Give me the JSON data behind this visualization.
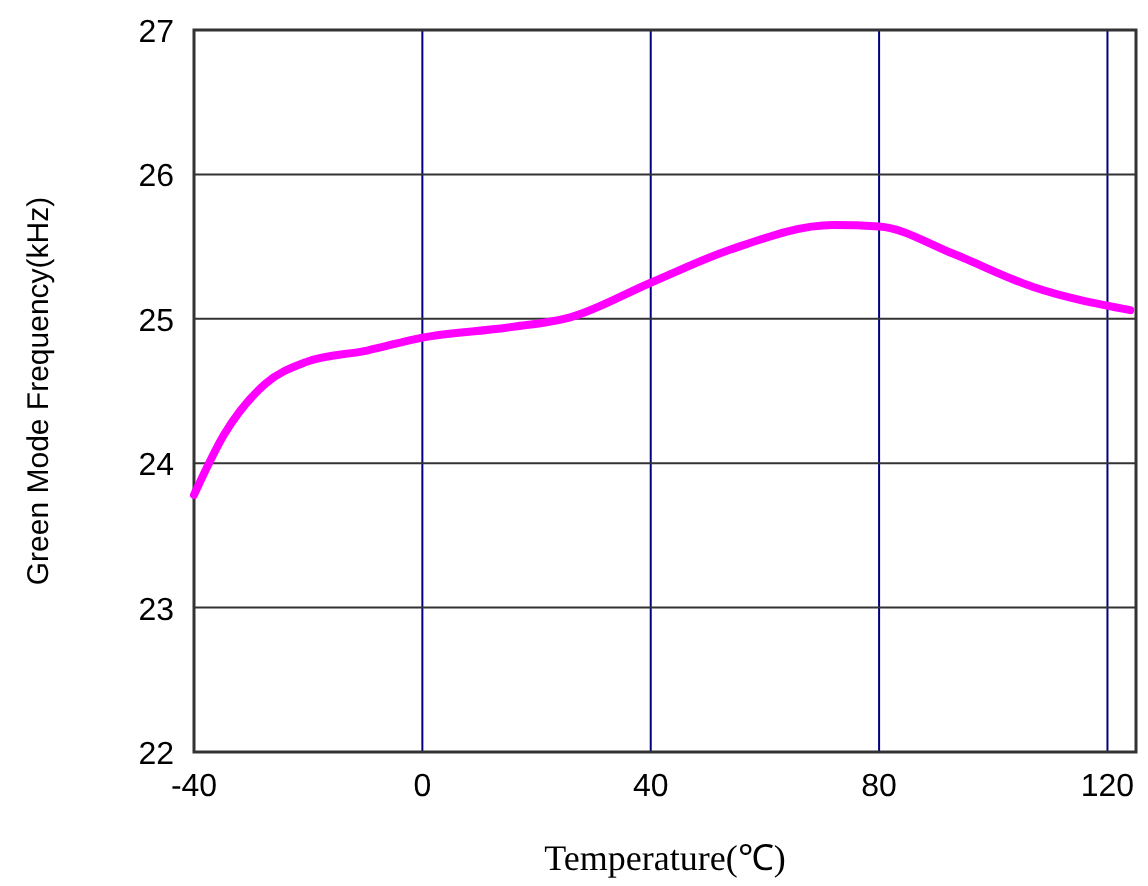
{
  "chart_data": {
    "type": "line",
    "xlabel": "Temperature(℃)",
    "ylabel": "Green Mode Frequency(kHz)",
    "x": [
      -40,
      -34.7,
      -27.5,
      -20.4,
      -9.7,
      0,
      15,
      25.9,
      40,
      54,
      72,
      80,
      93,
      107,
      124
    ],
    "series": [
      {
        "color": "#ff00ff",
        "values": [
          23.78,
          24.2,
          24.55,
          24.7,
          24.78,
          24.87,
          24.94,
          25.01,
          25.25,
          25.48,
          25.65,
          25.64,
          25.45,
          25.22,
          25.06
        ]
      }
    ],
    "xlim": [
      -40,
      125
    ],
    "xticks": [
      -40,
      0,
      40,
      80,
      120
    ],
    "ylim": [
      22,
      27
    ],
    "yticks": [
      22,
      23,
      24,
      25,
      26,
      27
    ],
    "grid": true,
    "marker": "none",
    "line_style": "solid"
  }
}
